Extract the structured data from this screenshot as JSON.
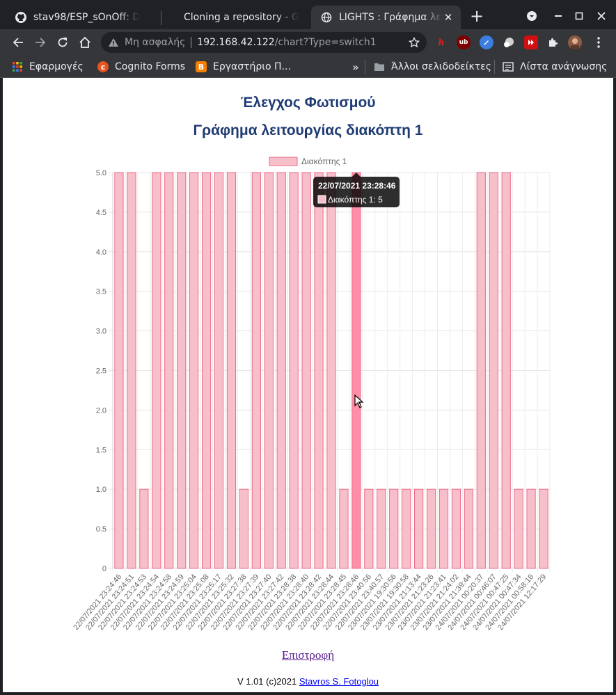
{
  "browser": {
    "tabs": [
      {
        "title": "stav98/ESP_sOnOff: D",
        "icon": "github-icon",
        "active": false
      },
      {
        "title": "Cloning a repository - G",
        "icon": "github-icon",
        "active": false
      },
      {
        "title": "LIGHTS : Γράφημα λειτ",
        "icon": "globe-icon",
        "active": true
      }
    ],
    "new_tab": "+",
    "address": {
      "security": "Μη ασφαλής",
      "host": "192.168.42.122",
      "path": "/chart?Type=switch1"
    },
    "bookmarks": {
      "apps": "Εφαρμογές",
      "items": [
        "Cognito Forms",
        "Εργαστήριο Π..."
      ],
      "overflow": "»",
      "other": "Άλλοι σελιδοδείκτες",
      "reading_list": "Λίστα ανάγνωσης"
    }
  },
  "page": {
    "heading": "Έλεγχος Φωτισμού",
    "subheading": "Γράφημα λειτουργίας διακόπτη 1",
    "back_link": "Επιστροφή",
    "footer_prefix": "V 1.01 (c)2021",
    "footer_author": "Stavros S. Fotoglou"
  },
  "colors": {
    "bar_fill": "#f7bfca",
    "bar_border": "#ee6b8a",
    "bar_hover": "#ff8ea6",
    "heading": "#1f3b73"
  },
  "chart_data": {
    "type": "bar",
    "legend": "Διακόπτης 1",
    "legend_position": "top",
    "ylim": [
      0,
      5
    ],
    "y_ticks": [
      "0",
      "0.5",
      "1.0",
      "1.5",
      "2.0",
      "2.5",
      "3.0",
      "3.5",
      "4.0",
      "4.5",
      "5.0"
    ],
    "grid": true,
    "categories": [
      "22/07/2021 23:24:46",
      "22/07/2021 23:24:51",
      "22/07/2021 23:24:53",
      "22/07/2021 23:24:54",
      "22/07/2021 23:24:58",
      "22/07/2021 23:24:59",
      "22/07/2021 23:25:04",
      "22/07/2021 23:25:08",
      "22/07/2021 23:25:17",
      "22/07/2021 23:25:32",
      "22/07/2021 23:27:38",
      "22/07/2021 23:27:39",
      "22/07/2021 23:27:40",
      "22/07/2021 23:27:42",
      "22/07/2021 23:28:38",
      "22/07/2021 23:28:40",
      "22/07/2021 23:28:42",
      "22/07/2021 23:28:44",
      "22/07/2021 23:28:45",
      "22/07/2021 23:28:46",
      "22/07/2021 23:40:56",
      "22/07/2021 23:40:57",
      "23/07/2021 19:30:56",
      "23/07/2021 19:30:58",
      "23/07/2021 21:13:44",
      "23/07/2021 21:23:26",
      "23/07/2021 21:23:41",
      "23/07/2021 21:24:02",
      "23/07/2021 21:39:44",
      "24/07/2021 00:20:37",
      "24/07/2021 00:46:07",
      "24/07/2021 00:47:25",
      "24/07/2021 00:47:34",
      "24/07/2021 00:58:16",
      "24/07/2021 12:17:29"
    ],
    "values": [
      5,
      5,
      1,
      5,
      5,
      5,
      5,
      5,
      5,
      5,
      1,
      5,
      5,
      5,
      5,
      5,
      5,
      5,
      1,
      5,
      1,
      1,
      1,
      1,
      1,
      1,
      1,
      1,
      1,
      5,
      5,
      5,
      1,
      1,
      1
    ],
    "highlighted_index": 19,
    "tooltip": {
      "title": "22/07/2021 23:28:46",
      "label": "Διακόπτης 1: 5"
    }
  }
}
